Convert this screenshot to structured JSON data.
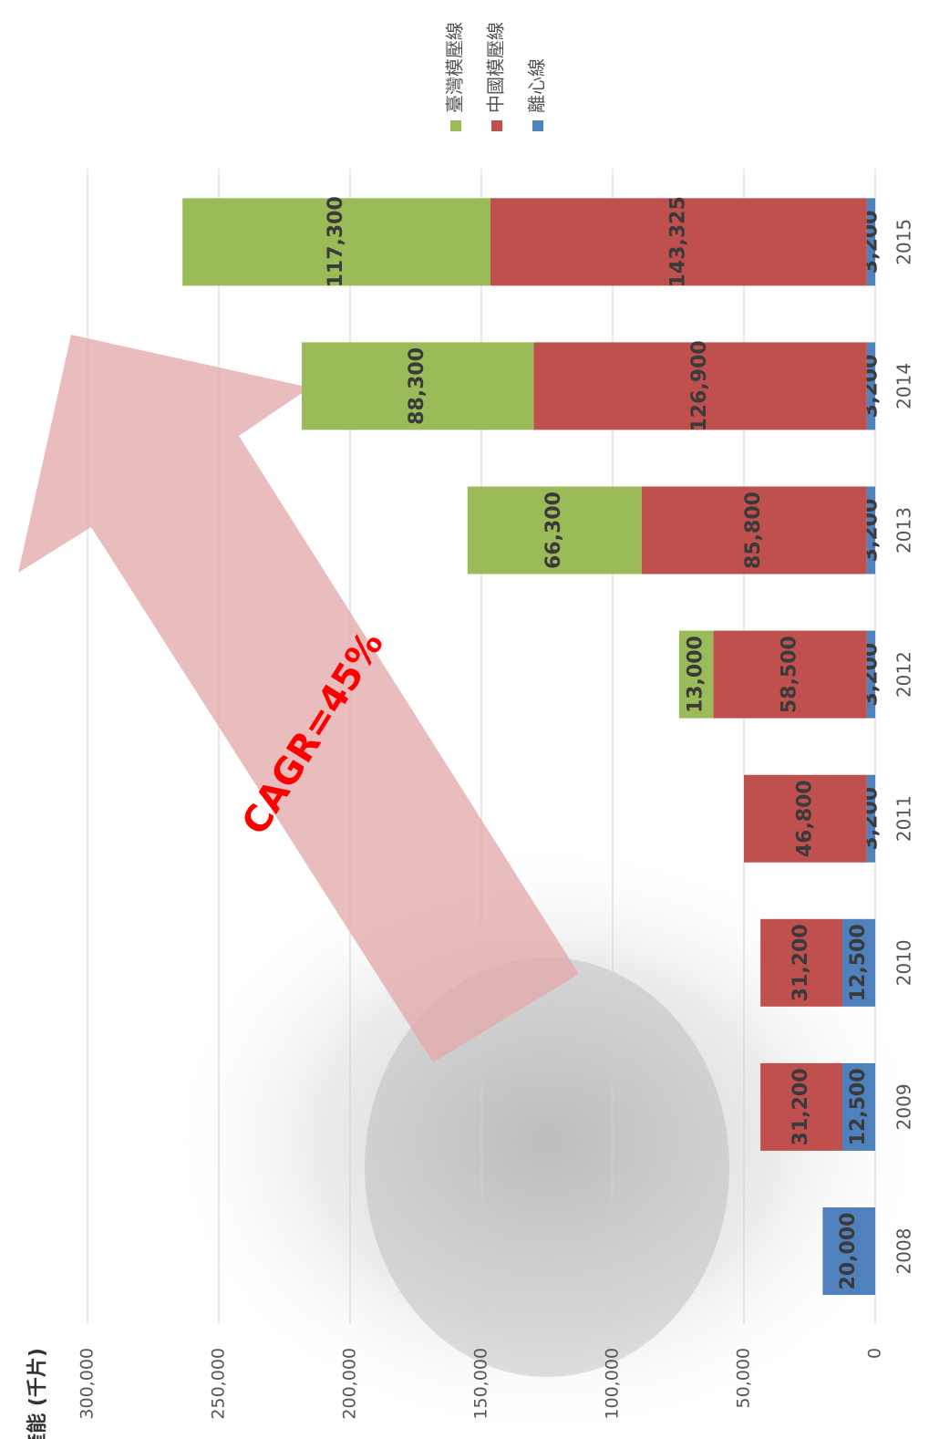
{
  "chart_data": {
    "type": "bar",
    "stacked": true,
    "orientation": "rotated",
    "y_label": "產能 (千片)",
    "annotation": "CAGR=45%",
    "categories": [
      "2008",
      "2009",
      "2010",
      "2011",
      "2012",
      "2013",
      "2014",
      "2015"
    ],
    "series": [
      {
        "name": "離心線",
        "color": "#4f81bd",
        "values": [
          20000,
          12500,
          12500,
          3200,
          3200,
          3200,
          3200,
          3200
        ],
        "value_labels": [
          "20,000",
          "12,500",
          "12,500",
          "3,200",
          "3,200",
          "3,200",
          "3,200",
          "3,200"
        ]
      },
      {
        "name": "中國模壓線",
        "color": "#c0504d",
        "values": [
          null,
          31200,
          31200,
          46800,
          58500,
          85800,
          126900,
          143325
        ],
        "value_labels": [
          null,
          "31,200",
          "31,200",
          "46,800",
          "58,500",
          "85,800",
          "126,900",
          "143,325"
        ]
      },
      {
        "name": "臺灣模壓線",
        "color": "#9bbb59",
        "values": [
          null,
          null,
          null,
          null,
          13000,
          66300,
          88300,
          117300
        ],
        "value_labels": [
          null,
          null,
          null,
          null,
          "13,000",
          "66,300",
          "88,300",
          "117,300"
        ]
      }
    ],
    "ylim": [
      0,
      300000
    ],
    "yticks": [
      0,
      {
        "value": 50000,
        "label": "50,000"
      },
      {
        "value": 100000,
        "label": "100,000"
      },
      {
        "value": 150000,
        "label": "150,000"
      },
      {
        "value": 200000,
        "label": "200,000"
      },
      {
        "value": 250000,
        "label": "250,000"
      },
      {
        "value": 300000,
        "label": "300,000"
      }
    ],
    "grid": true
  }
}
